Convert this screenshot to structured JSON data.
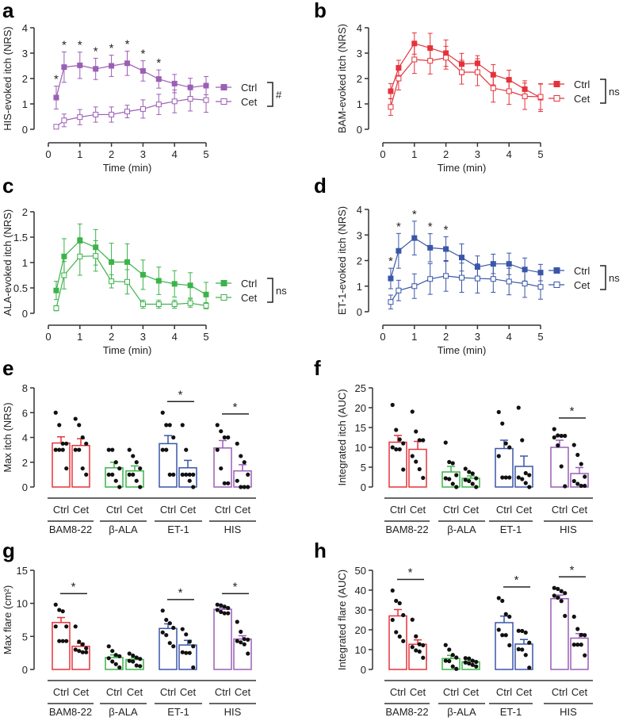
{
  "colors": {
    "BAM8-22": "#e5333b",
    "β-ALA": "#3cb34a",
    "ET-1": "#3a56a8",
    "HIS": "#9b5fb6"
  },
  "chart_data": [
    {
      "panel": "a",
      "type": "line",
      "color": "#9b5fb6",
      "ylabel": "HIS-evoked itch (NRS)",
      "xlabel": "Time (min)",
      "ylim": [
        0,
        4
      ],
      "yticks": [
        0,
        1,
        2,
        3,
        4
      ],
      "xlim": [
        0,
        5
      ],
      "xticks": [
        0,
        1,
        2,
        3,
        4,
        5
      ],
      "x": [
        0.25,
        0.5,
        1,
        1.5,
        2,
        2.5,
        3,
        3.5,
        4,
        4.5,
        5
      ],
      "series": [
        {
          "name": "Ctrl",
          "marker": "filled",
          "values": [
            1.25,
            2.45,
            2.52,
            2.38,
            2.5,
            2.6,
            2.3,
            1.98,
            1.8,
            1.65,
            1.72
          ],
          "sem": [
            0.45,
            0.6,
            0.52,
            0.42,
            0.42,
            0.48,
            0.4,
            0.36,
            0.36,
            0.36,
            0.36
          ]
        },
        {
          "name": "Cet",
          "marker": "open",
          "values": [
            0.1,
            0.35,
            0.48,
            0.58,
            0.58,
            0.7,
            0.8,
            0.98,
            1.1,
            1.2,
            1.15
          ],
          "sem": [
            0.08,
            0.25,
            0.3,
            0.3,
            0.3,
            0.25,
            0.36,
            0.4,
            0.45,
            0.48,
            0.48
          ]
        }
      ],
      "significant_points": [
        0,
        1,
        2,
        3,
        4,
        5,
        6,
        7
      ],
      "star": "*",
      "comparison": "#"
    },
    {
      "panel": "b",
      "type": "line",
      "color": "#e5333b",
      "ylabel": "BAM-evoked itch (NRS)",
      "xlabel": "Time (min)",
      "ylim": [
        0,
        4
      ],
      "yticks": [
        0,
        1,
        2,
        3,
        4
      ],
      "xlim": [
        0,
        5
      ],
      "xticks": [
        0,
        1,
        2,
        3,
        4,
        5
      ],
      "x": [
        0.25,
        0.5,
        1,
        1.5,
        2,
        2.5,
        3,
        3.5,
        4,
        4.5,
        5
      ],
      "series": [
        {
          "name": "Ctrl",
          "marker": "filled",
          "values": [
            1.5,
            2.42,
            3.38,
            3.2,
            3.0,
            2.57,
            2.6,
            2.15,
            1.95,
            1.58,
            1.25
          ],
          "sem": [
            0.3,
            0.3,
            0.42,
            0.58,
            0.52,
            0.42,
            0.3,
            0.4,
            0.38,
            0.33,
            0.55
          ]
        },
        {
          "name": "Cet",
          "marker": "open",
          "values": [
            0.88,
            2.0,
            2.75,
            2.7,
            2.82,
            2.25,
            2.25,
            1.62,
            1.5,
            1.3,
            1.28
          ],
          "sem": [
            0.33,
            0.45,
            0.55,
            0.52,
            0.45,
            0.47,
            0.53,
            0.55,
            0.52,
            0.52,
            0.5
          ]
        }
      ],
      "significant_points": [],
      "star": "*",
      "comparison": "ns"
    },
    {
      "panel": "c",
      "type": "line",
      "color": "#3cb34a",
      "ylabel": "ALA-evoked itch (NRS)",
      "xlabel": "Time (min)",
      "ylim": [
        0,
        2
      ],
      "yticks": [
        0,
        0.5,
        1,
        1.5,
        2
      ],
      "xlim": [
        0,
        5
      ],
      "xticks": [
        0,
        1,
        2,
        3,
        4,
        5
      ],
      "x": [
        0.25,
        0.5,
        1,
        1.5,
        2,
        2.5,
        3,
        3.5,
        4,
        4.5,
        5
      ],
      "series": [
        {
          "name": "Ctrl",
          "marker": "filled",
          "values": [
            0.45,
            1.12,
            1.43,
            1.3,
            1.01,
            1.01,
            0.76,
            0.64,
            0.58,
            0.55,
            0.37
          ],
          "sem": [
            0.18,
            0.35,
            0.33,
            0.35,
            0.37,
            0.36,
            0.29,
            0.27,
            0.26,
            0.25,
            0.24
          ]
        },
        {
          "name": "Cet",
          "marker": "open",
          "values": [
            0.1,
            0.75,
            1.12,
            1.13,
            0.63,
            0.62,
            0.18,
            0.18,
            0.18,
            0.2,
            0.15
          ],
          "sem": [
            0.05,
            0.27,
            0.37,
            0.3,
            0.13,
            0.24,
            0.08,
            0.08,
            0.08,
            0.08,
            0.06
          ]
        }
      ],
      "significant_points": [],
      "star": "*",
      "comparison": "ns"
    },
    {
      "panel": "d",
      "type": "line",
      "color": "#3a56a8",
      "ylabel": "ET-1-evoked itch (NRS)",
      "xlabel": "Time (min)",
      "ylim": [
        0,
        4
      ],
      "yticks": [
        0,
        1,
        2,
        3,
        4
      ],
      "xlim": [
        0,
        5
      ],
      "xticks": [
        0,
        1,
        2,
        3,
        4,
        5
      ],
      "x": [
        0.25,
        0.5,
        1,
        1.5,
        2,
        2.5,
        3,
        3.5,
        4,
        4.5,
        5
      ],
      "series": [
        {
          "name": "Ctrl",
          "marker": "filled",
          "values": [
            1.3,
            2.38,
            2.88,
            2.5,
            2.45,
            2.12,
            1.75,
            1.87,
            1.87,
            1.65,
            1.53
          ],
          "sem": [
            0.4,
            0.68,
            0.66,
            0.55,
            0.48,
            0.53,
            0.43,
            0.38,
            0.42,
            0.45,
            0.32
          ]
        },
        {
          "name": "Cet",
          "marker": "open",
          "values": [
            0.38,
            0.83,
            1.0,
            1.28,
            1.4,
            1.33,
            1.3,
            1.28,
            1.18,
            1.1,
            0.97
          ],
          "sem": [
            0.27,
            0.4,
            0.48,
            0.6,
            0.6,
            0.57,
            0.57,
            0.52,
            0.52,
            0.54,
            0.48
          ]
        }
      ],
      "significant_points": [
        0,
        1,
        2,
        3,
        4
      ],
      "star": "*",
      "comparison": "ns"
    },
    {
      "panel": "e",
      "type": "bar",
      "ylabel": "Max itch (NRS)",
      "ylim": [
        0,
        8
      ],
      "yticks": [
        0,
        2,
        4,
        6,
        8
      ],
      "conditions": [
        "Ctrl",
        "Cet"
      ],
      "star": "*",
      "groups": [
        {
          "name": "BAM8-22",
          "significant": false,
          "bars": [
            {
              "mean": 3.55,
              "sem": 0.5,
              "points": [
                6,
                5,
                3.5,
                3.5,
                3,
                3,
                3,
                1.5
              ]
            },
            {
              "mean": 3.35,
              "sem": 0.55,
              "points": [
                5.5,
                5,
                4,
                3.5,
                3,
                3,
                1.5,
                1
              ]
            }
          ]
        },
        {
          "name": "β-ALA",
          "significant": false,
          "bars": [
            {
              "mean": 1.55,
              "sem": 0.45,
              "points": [
                3,
                3,
                2,
                1.5,
                1,
                1,
                0.5,
                0
              ]
            },
            {
              "mean": 1.3,
              "sem": 0.4,
              "points": [
                3,
                2.5,
                2,
                1.5,
                1,
                1,
                0.5,
                0
              ]
            }
          ]
        },
        {
          "name": "ET-1",
          "significant": true,
          "bars": [
            {
              "mean": 3.5,
              "sem": 0.65,
              "points": [
                6,
                5,
                5,
                4,
                3,
                3,
                1,
                1
              ]
            },
            {
              "mean": 1.55,
              "sem": 0.6,
              "points": [
                5,
                3,
                1,
                1,
                1,
                1,
                0.5,
                0
              ]
            }
          ]
        },
        {
          "name": "HIS",
          "significant": true,
          "bars": [
            {
              "mean": 3.15,
              "sem": 0.6,
              "points": [
                5,
                4.5,
                4,
                4,
                3,
                1.5,
                0.3,
                0.3
              ]
            },
            {
              "mean": 1.3,
              "sem": 0.5,
              "points": [
                3.5,
                2.5,
                2,
                1,
                0.5,
                0,
                0,
                0
              ]
            }
          ]
        }
      ]
    },
    {
      "panel": "f",
      "type": "bar",
      "ylabel": "Integrated itch (AUC)",
      "ylim": [
        0,
        25
      ],
      "yticks": [
        0,
        5,
        10,
        15,
        20,
        25
      ],
      "conditions": [
        "Ctrl",
        "Cet"
      ],
      "star": "*",
      "groups": [
        {
          "name": "BAM8-22",
          "significant": false,
          "bars": [
            {
              "mean": 11.3,
              "sem": 1.7,
              "points": [
                20.7,
                14.4,
                12,
                11,
                10,
                9.5,
                9.5,
                4.4
              ]
            },
            {
              "mean": 9.5,
              "sem": 2.0,
              "points": [
                19,
                14,
                11.8,
                11.8,
                7.8,
                6.4,
                4.5,
                2.3
              ]
            }
          ]
        },
        {
          "name": "β-ALA",
          "significant": false,
          "bars": [
            {
              "mean": 3.8,
              "sem": 1.4,
              "points": [
                11.2,
                6.3,
                6,
                3,
                2.2,
                2,
                0.8,
                0
              ]
            },
            {
              "mean": 2.2,
              "sem": 0.6,
              "points": [
                4.6,
                3.8,
                3.4,
                2.2,
                1.8,
                1.5,
                0.8,
                0
              ]
            }
          ]
        },
        {
          "name": "ET-1",
          "significant": false,
          "bars": [
            {
              "mean": 9.7,
              "sem": 2.1,
              "points": [
                18.9,
                16,
                11,
                10,
                7.8,
                2.4,
                2.4,
                2.4
              ]
            },
            {
              "mean": 5.2,
              "sem": 2.6,
              "points": [
                20,
                11.8,
                3.5,
                3,
                2.4,
                2,
                1,
                0
              ]
            }
          ]
        },
        {
          "name": "HIS",
          "significant": true,
          "bars": [
            {
              "mean": 10,
              "sem": 1.8,
              "points": [
                14.6,
                13,
                12.9,
                12.9,
                12.5,
                10.5,
                5.2,
                0.2
              ]
            },
            {
              "mean": 3.4,
              "sem": 1.5,
              "points": [
                10.6,
                8.1,
                5.8,
                2.6,
                1.5,
                0.8,
                0.3,
                0.3
              ]
            }
          ]
        }
      ]
    },
    {
      "panel": "g",
      "type": "bar",
      "ylabel": "Max flare (cm²)",
      "ylim": [
        0,
        15
      ],
      "yticks": [
        0,
        5,
        10,
        15
      ],
      "conditions": [
        "Ctrl",
        "Cet"
      ],
      "star": "*",
      "groups": [
        {
          "name": "BAM8-22",
          "significant": true,
          "bars": [
            {
              "mean": 7.1,
              "sem": 0.75,
              "points": [
                9.8,
                9,
                8.8,
                6.5,
                6.5,
                4.3,
                4.3,
                4.3
              ]
            },
            {
              "mean": 3.5,
              "sem": 0.45,
              "points": [
                6.5,
                4.2,
                3.8,
                3.2,
                3,
                2.8,
                2.6,
                2.6
              ]
            }
          ]
        },
        {
          "name": "β-ALA",
          "significant": false,
          "bars": [
            {
              "mean": 1.8,
              "sem": 0.4,
              "points": [
                3.5,
                2.8,
                2.2,
                2,
                1.7,
                1.2,
                0.8,
                0.3
              ]
            },
            {
              "mean": 1.5,
              "sem": 0.25,
              "points": [
                2.4,
                2.1,
                1.8,
                1.6,
                1.3,
                1.2,
                0.6,
                0.5
              ]
            }
          ]
        },
        {
          "name": "ET-1",
          "significant": true,
          "bars": [
            {
              "mean": 6.2,
              "sem": 0.7,
              "points": [
                8.9,
                7.5,
                7,
                6.3,
                5.6,
                5.2,
                4,
                3.5
              ]
            },
            {
              "mean": 3.7,
              "sem": 0.7,
              "points": [
                6.1,
                5.3,
                4.2,
                3.5,
                2.6,
                2.5,
                2.5,
                0.3
              ]
            }
          ]
        },
        {
          "name": "HIS",
          "significant": true,
          "bars": [
            {
              "mean": 9.1,
              "sem": 0.25,
              "points": [
                9.8,
                9.7,
                9.5,
                9.3,
                9,
                8.7,
                8.5,
                8.5
              ]
            },
            {
              "mean": 4.6,
              "sem": 0.5,
              "points": [
                7.2,
                5.7,
                4.6,
                4.5,
                4.3,
                4.1,
                3.8,
                2.4
              ]
            }
          ]
        }
      ]
    },
    {
      "panel": "h",
      "type": "bar",
      "ylabel": "Integrated flare (AUC)",
      "ylim": [
        0,
        50
      ],
      "yticks": [
        0,
        10,
        20,
        30,
        40,
        50
      ],
      "conditions": [
        "Ctrl",
        "Cet"
      ],
      "star": "*",
      "groups": [
        {
          "name": "BAM8-22",
          "significant": true,
          "bars": [
            {
              "mean": 27,
              "sem": 3.2,
              "points": [
                39.8,
                34.6,
                33.4,
                27.4,
                25,
                18.8,
                16.6,
                14.3
              ]
            },
            {
              "mean": 12.7,
              "sem": 2.2,
              "points": [
                25.1,
                16.7,
                12.7,
                12.2,
                11.3,
                9.6,
                9,
                5.9
              ]
            }
          ]
        },
        {
          "name": "β-ALA",
          "significant": false,
          "bars": [
            {
              "mean": 5.5,
              "sem": 1.6,
              "points": [
                12.3,
                10,
                7.3,
                6,
                4.4,
                4.2,
                1.5,
                0.3
              ]
            },
            {
              "mean": 3.8,
              "sem": 0.6,
              "points": [
                5.7,
                5.5,
                4.4,
                3.8,
                3.5,
                3,
                2.3,
                1.5
              ]
            }
          ]
        },
        {
          "name": "ET-1",
          "significant": true,
          "bars": [
            {
              "mean": 23.6,
              "sem": 3.3,
              "points": [
                36,
                34.6,
                27.9,
                26.6,
                20,
                17.3,
                17.3,
                12.2
              ]
            },
            {
              "mean": 12.8,
              "sem": 2.3,
              "points": [
                19.5,
                19.4,
                18.6,
                13.5,
                10.2,
                10,
                7.3,
                0.9
              ]
            }
          ]
        },
        {
          "name": "HIS",
          "significant": true,
          "bars": [
            {
              "mean": 35.7,
              "sem": 1.8,
              "points": [
                41.1,
                40.6,
                39.5,
                38.5,
                37.2,
                36.2,
                34.5,
                27
              ]
            },
            {
              "mean": 15.8,
              "sem": 2.3,
              "points": [
                26.6,
                20.4,
                17.4,
                17.3,
                12.5,
                12.5,
                12.5,
                7.1
              ]
            }
          ]
        }
      ]
    }
  ]
}
